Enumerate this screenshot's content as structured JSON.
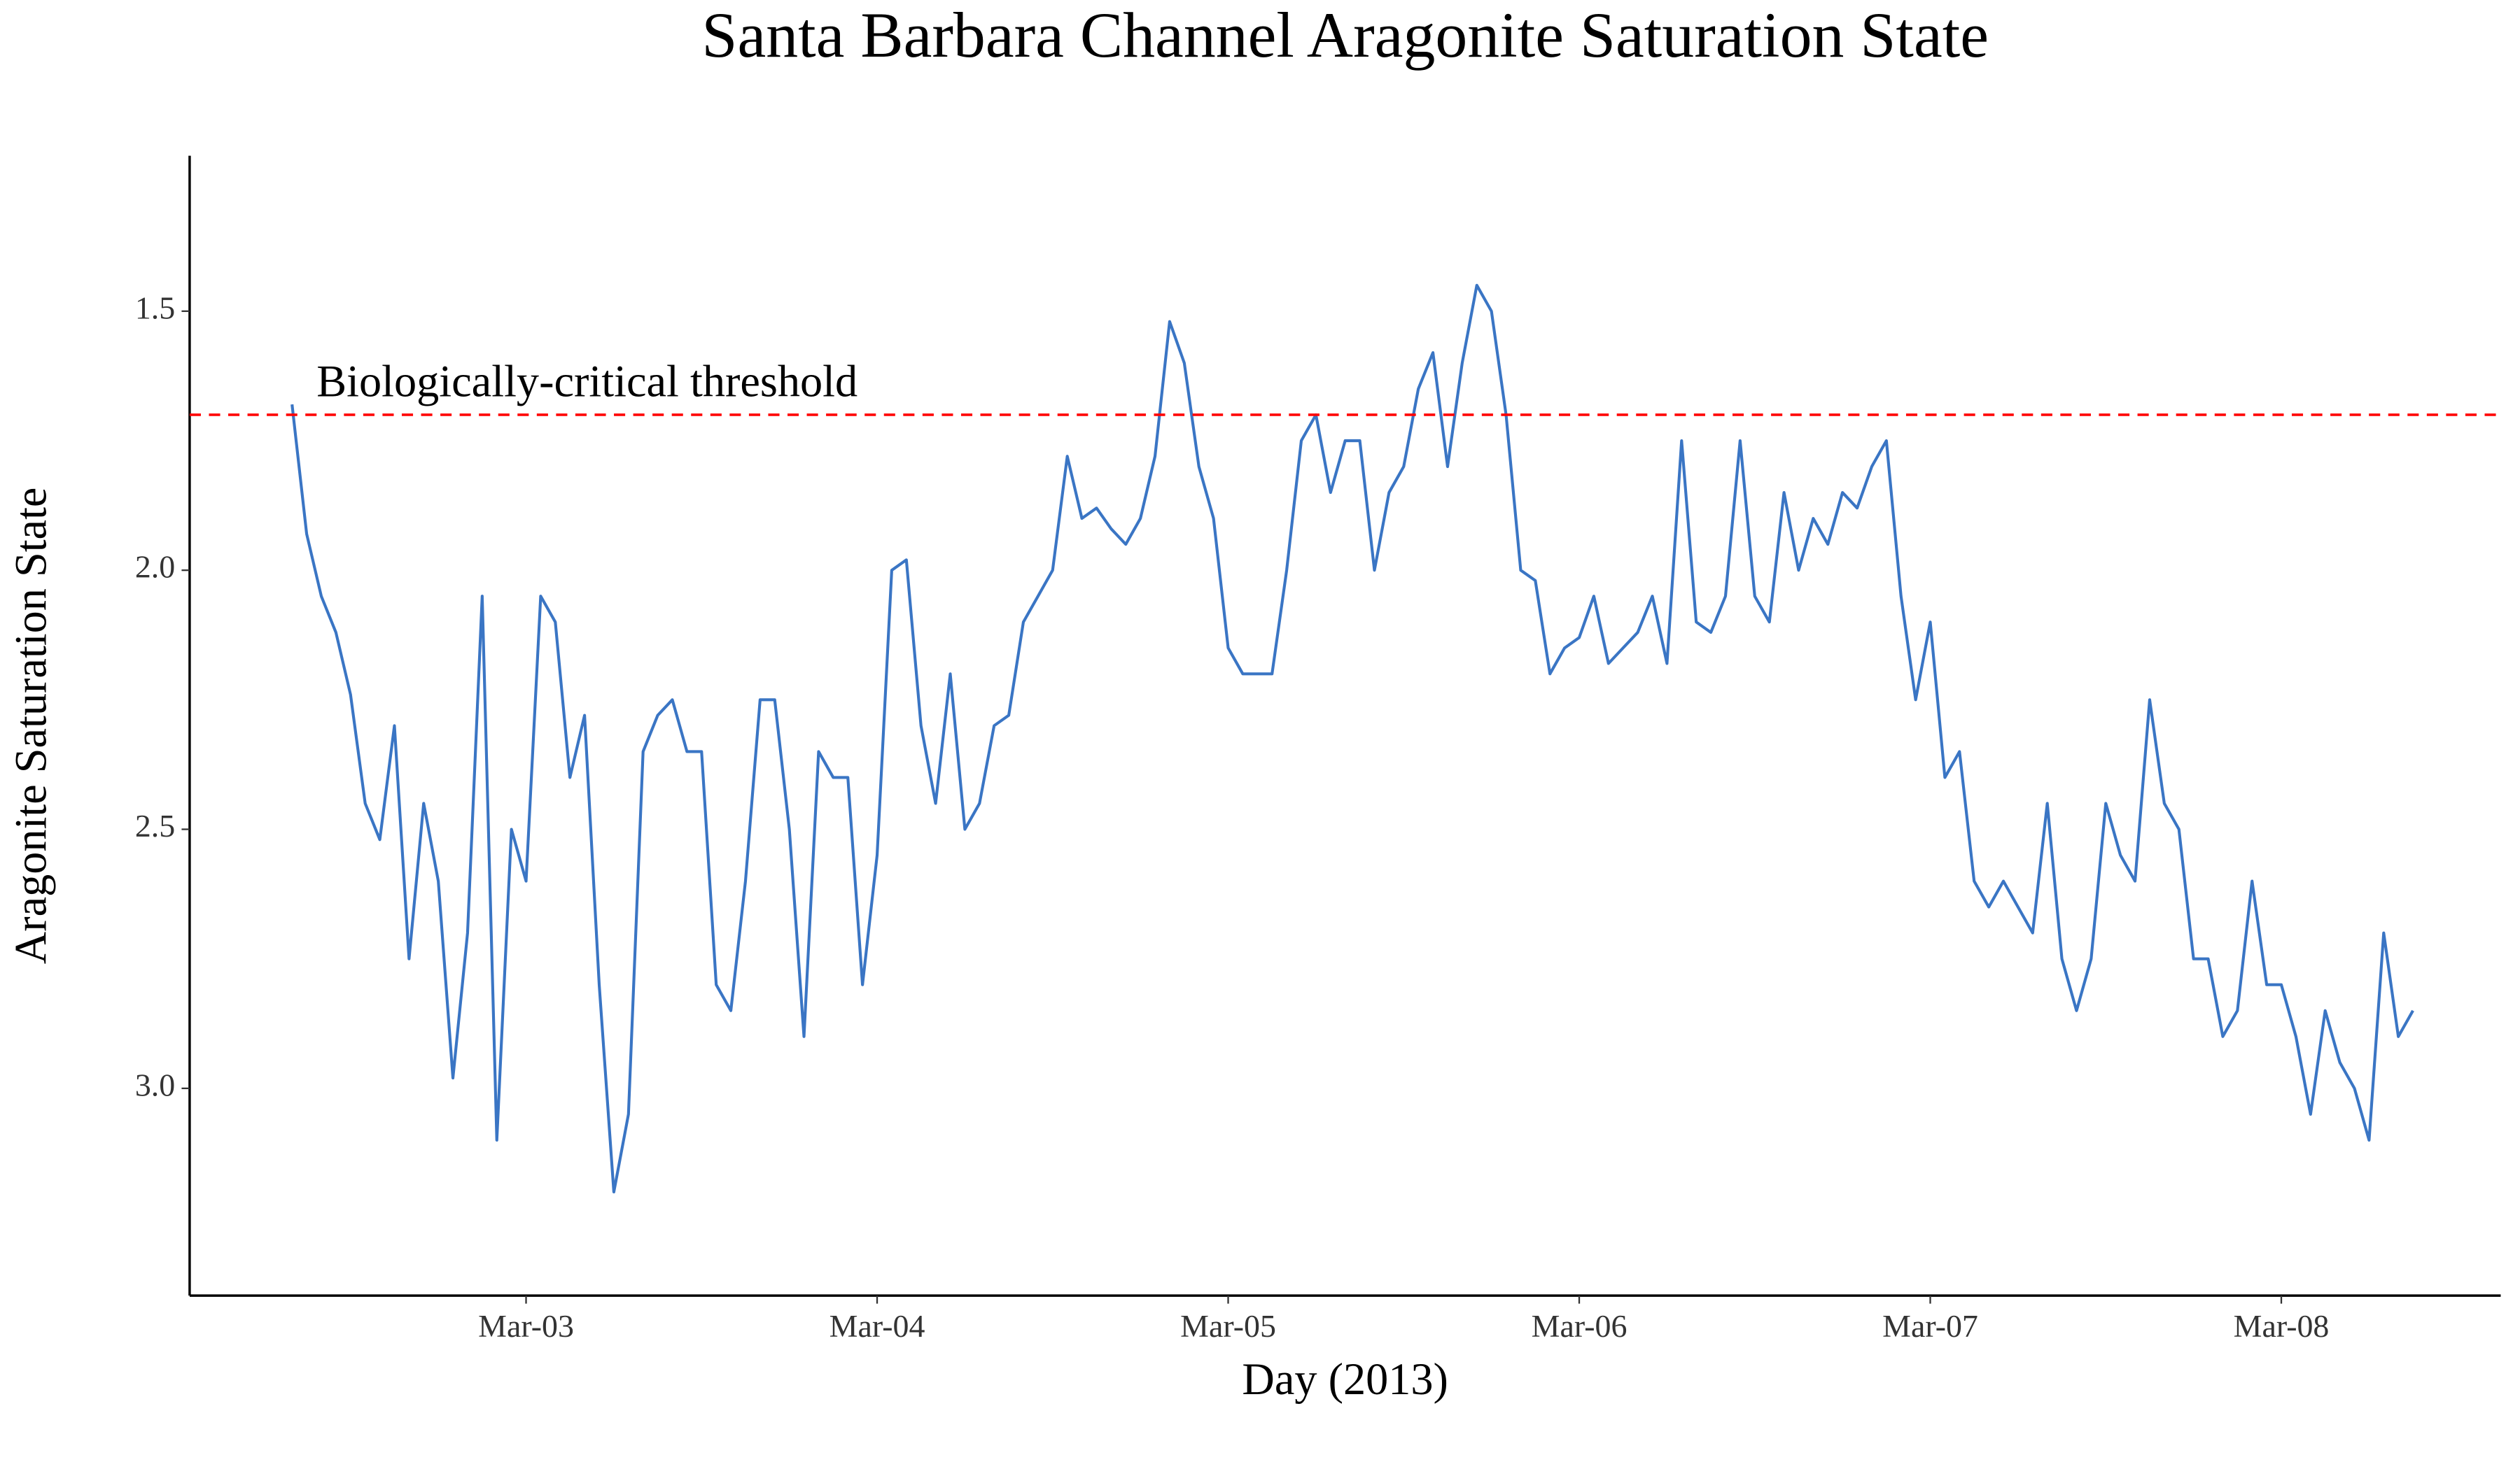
{
  "chart_data": {
    "type": "line",
    "title": "Santa Barbara Channel Aragonite Saturation State",
    "x_label": "Day (2013)",
    "y_label": "Aragonite Saturation State",
    "x": [
      "2013-03-02 08:00",
      "2013-03-02 09:00",
      "2013-03-02 10:00",
      "2013-03-02 11:00",
      "2013-03-02 12:00",
      "2013-03-02 13:00",
      "2013-03-02 14:00",
      "2013-03-02 15:00",
      "2013-03-02 16:00",
      "2013-03-02 17:00",
      "2013-03-02 18:00",
      "2013-03-02 19:00",
      "2013-03-02 20:00",
      "2013-03-02 21:00",
      "2013-03-02 22:00",
      "2013-03-02 23:00",
      "2013-03-03 00:00",
      "2013-03-03 01:00",
      "2013-03-03 02:00",
      "2013-03-03 03:00",
      "2013-03-03 04:00",
      "2013-03-03 05:00",
      "2013-03-03 06:00",
      "2013-03-03 07:00",
      "2013-03-03 08:00",
      "2013-03-03 09:00",
      "2013-03-03 10:00",
      "2013-03-03 11:00",
      "2013-03-03 12:00",
      "2013-03-03 13:00",
      "2013-03-03 14:00",
      "2013-03-03 15:00",
      "2013-03-03 16:00",
      "2013-03-03 17:00",
      "2013-03-03 18:00",
      "2013-03-03 19:00",
      "2013-03-03 20:00",
      "2013-03-03 21:00",
      "2013-03-03 22:00",
      "2013-03-03 23:00",
      "2013-03-04 00:00",
      "2013-03-04 01:00",
      "2013-03-04 02:00",
      "2013-03-04 03:00",
      "2013-03-04 04:00",
      "2013-03-04 05:00",
      "2013-03-04 06:00",
      "2013-03-04 07:00",
      "2013-03-04 08:00",
      "2013-03-04 09:00",
      "2013-03-04 10:00",
      "2013-03-04 11:00",
      "2013-03-04 12:00",
      "2013-03-04 13:00",
      "2013-03-04 14:00",
      "2013-03-04 15:00",
      "2013-03-04 16:00",
      "2013-03-04 17:00",
      "2013-03-04 18:00",
      "2013-03-04 19:00",
      "2013-03-04 20:00",
      "2013-03-04 21:00",
      "2013-03-04 22:00",
      "2013-03-04 23:00",
      "2013-03-05 00:00",
      "2013-03-05 01:00",
      "2013-03-05 02:00",
      "2013-03-05 03:00",
      "2013-03-05 04:00",
      "2013-03-05 05:00",
      "2013-03-05 06:00",
      "2013-03-05 07:00",
      "2013-03-05 08:00",
      "2013-03-05 09:00",
      "2013-03-05 10:00",
      "2013-03-05 11:00",
      "2013-03-05 12:00",
      "2013-03-05 13:00",
      "2013-03-05 14:00",
      "2013-03-05 15:00",
      "2013-03-05 16:00",
      "2013-03-05 17:00",
      "2013-03-05 18:00",
      "2013-03-05 19:00",
      "2013-03-05 20:00",
      "2013-03-05 21:00",
      "2013-03-05 22:00",
      "2013-03-05 23:00",
      "2013-03-06 00:00",
      "2013-03-06 01:00",
      "2013-03-06 02:00",
      "2013-03-06 03:00",
      "2013-03-06 04:00",
      "2013-03-06 05:00",
      "2013-03-06 06:00",
      "2013-03-06 07:00",
      "2013-03-06 08:00",
      "2013-03-06 09:00",
      "2013-03-06 10:00",
      "2013-03-06 11:00",
      "2013-03-06 12:00",
      "2013-03-06 13:00",
      "2013-03-06 14:00",
      "2013-03-06 15:00",
      "2013-03-06 16:00",
      "2013-03-06 17:00",
      "2013-03-06 18:00",
      "2013-03-06 19:00",
      "2013-03-06 20:00",
      "2013-03-06 21:00",
      "2013-03-06 22:00",
      "2013-03-06 23:00",
      "2013-03-07 00:00",
      "2013-03-07 01:00",
      "2013-03-07 02:00",
      "2013-03-07 03:00",
      "2013-03-07 04:00",
      "2013-03-07 05:00",
      "2013-03-07 06:00",
      "2013-03-07 07:00",
      "2013-03-07 08:00",
      "2013-03-07 09:00",
      "2013-03-07 10:00",
      "2013-03-07 11:00",
      "2013-03-07 12:00",
      "2013-03-07 13:00",
      "2013-03-07 14:00",
      "2013-03-07 15:00",
      "2013-03-07 16:00",
      "2013-03-07 17:00",
      "2013-03-07 18:00",
      "2013-03-07 19:00",
      "2013-03-07 20:00",
      "2013-03-07 21:00",
      "2013-03-07 22:00",
      "2013-03-07 23:00",
      "2013-03-08 00:00",
      "2013-03-08 01:00",
      "2013-03-08 02:00",
      "2013-03-08 03:00",
      "2013-03-08 04:00",
      "2013-03-08 05:00",
      "2013-03-08 06:00",
      "2013-03-08 07:00",
      "2013-03-08 08:00",
      "2013-03-08 09:00"
    ],
    "series": [
      {
        "color": "#3a75c4",
        "values": [
          1.68,
          1.93,
          2.05,
          2.12,
          2.24,
          2.45,
          2.52,
          2.3,
          2.75,
          2.45,
          2.6,
          2.98,
          2.7,
          2.05,
          3.1,
          2.5,
          2.6,
          2.05,
          2.1,
          2.4,
          2.28,
          2.8,
          3.2,
          3.05,
          2.35,
          2.28,
          2.25,
          2.35,
          2.35,
          2.8,
          2.85,
          2.6,
          2.25,
          2.25,
          2.5,
          2.9,
          2.35,
          2.4,
          2.4,
          2.8,
          2.55,
          2.0,
          1.98,
          2.3,
          2.45,
          2.2,
          2.5,
          2.45,
          2.3,
          2.28,
          2.1,
          2.05,
          2.0,
          1.78,
          1.9,
          1.88,
          1.92,
          1.95,
          1.9,
          1.78,
          1.52,
          1.6,
          1.8,
          1.9,
          2.15,
          2.2,
          2.2,
          2.2,
          2.0,
          1.75,
          1.7,
          1.85,
          1.75,
          1.75,
          2.0,
          1.85,
          1.8,
          1.65,
          1.58,
          1.8,
          1.6,
          1.45,
          1.5,
          1.7,
          2.0,
          2.02,
          2.2,
          2.15,
          2.13,
          2.05,
          2.18,
          2.15,
          2.12,
          2.05,
          2.18,
          1.75,
          2.1,
          2.12,
          2.05,
          1.75,
          2.05,
          2.1,
          1.85,
          2.0,
          1.9,
          1.95,
          1.85,
          1.88,
          1.8,
          1.75,
          2.05,
          2.25,
          2.1,
          2.4,
          2.35,
          2.6,
          2.65,
          2.6,
          2.65,
          2.7,
          2.45,
          2.75,
          2.85,
          2.75,
          2.45,
          2.55,
          2.6,
          2.25,
          2.45,
          2.5,
          2.75,
          2.75,
          2.9,
          2.85,
          2.6,
          2.8,
          2.8,
          2.9,
          3.05,
          2.85,
          2.95,
          3.0,
          3.1,
          2.7,
          2.9,
          2.85
        ]
      }
    ],
    "threshold": {
      "value": 1.7,
      "label": "Biologically-critical threshold",
      "color": "#ff0000"
    },
    "xlim": [
      "2013-03-02 01:00",
      "2013-03-08 15:00"
    ],
    "xticks": [
      {
        "value": "2013-03-03 00:00",
        "label": "Mar-03"
      },
      {
        "value": "2013-03-04 00:00",
        "label": "Mar-04"
      },
      {
        "value": "2013-03-05 00:00",
        "label": "Mar-05"
      },
      {
        "value": "2013-03-06 00:00",
        "label": "Mar-06"
      },
      {
        "value": "2013-03-07 00:00",
        "label": "Mar-07"
      },
      {
        "value": "2013-03-08 00:00",
        "label": "Mar-08"
      }
    ],
    "ylim": [
      3.4,
      1.2
    ],
    "yticks": [
      1.5,
      {
        "value": 2,
        "label": "2.0"
      },
      2.5,
      {
        "value": 3,
        "label": "3.0"
      }
    ],
    "grid": false
  }
}
